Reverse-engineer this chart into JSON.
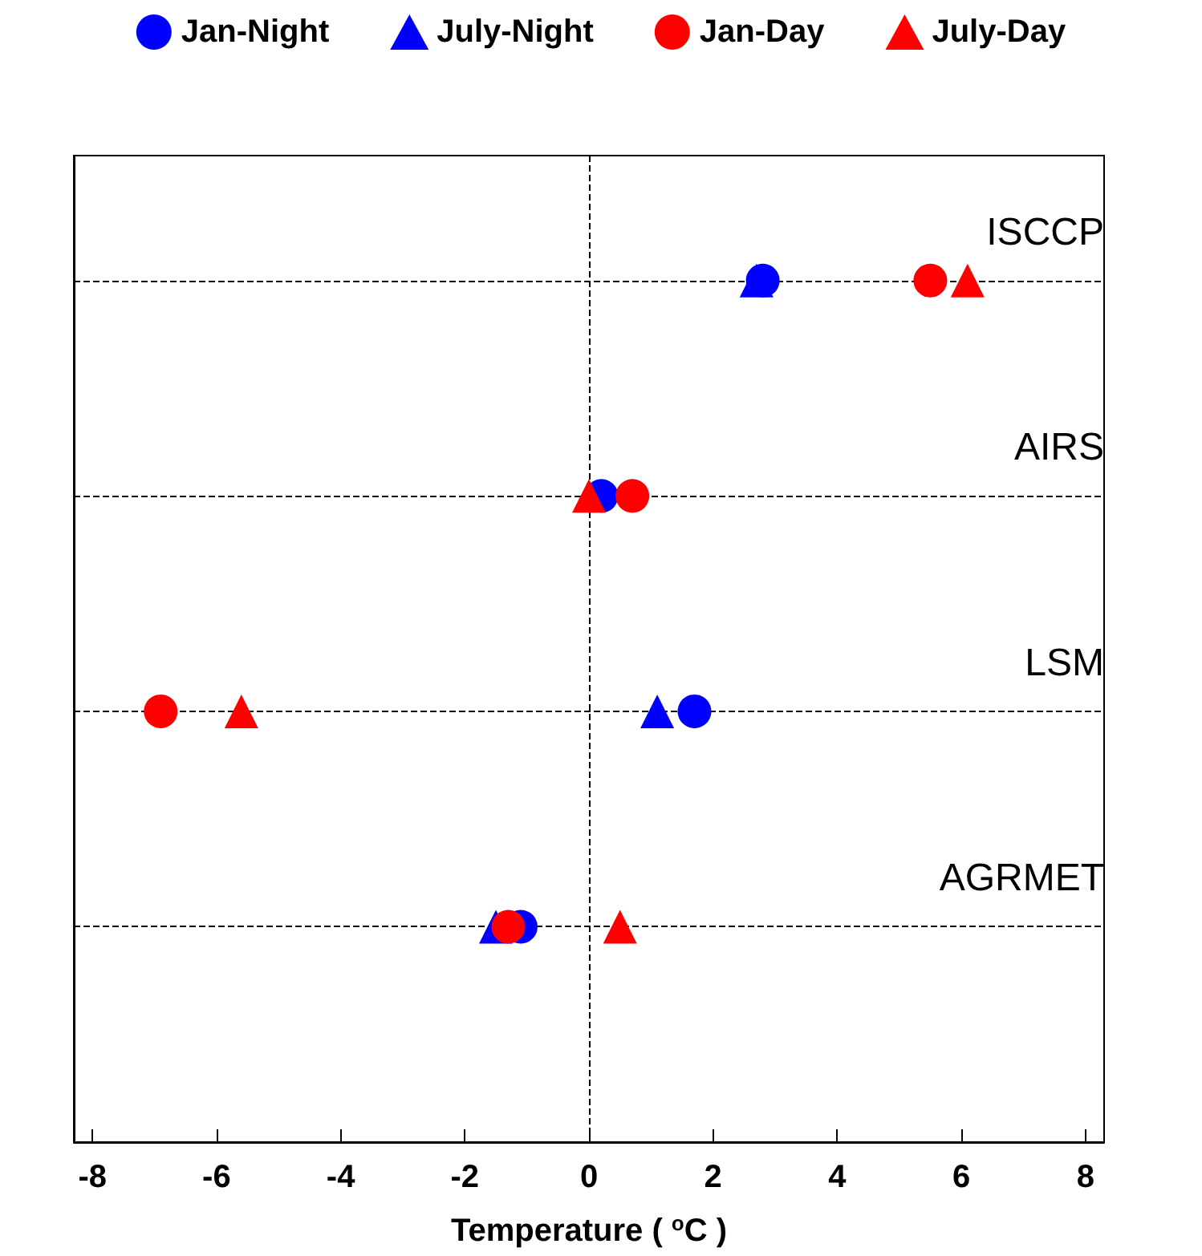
{
  "chart_data": {
    "type": "scatter",
    "orientation": "horizontal",
    "xlabel": "Temperature ( $^{o}$C )",
    "categories": [
      "ISCCP",
      "AIRS",
      "LSM",
      "AGRMET"
    ],
    "xlim": [
      -8.3,
      8.3
    ],
    "xticks": [
      -8,
      -6,
      -4,
      -2,
      0,
      2,
      4,
      6,
      8
    ],
    "grid": "y",
    "legend": "top",
    "ref_lines": [
      {
        "axis": "x",
        "value": 0,
        "line_style": "dashed",
        "color": "#000000"
      }
    ],
    "series": [
      {
        "name": "Jan-Night",
        "color": "#0000ff",
        "marker": "circle",
        "values": [
          2.8,
          0.2,
          1.7,
          -1.1
        ]
      },
      {
        "name": "July-Night",
        "color": "#0000ff",
        "marker": "triangle",
        "values": [
          2.7,
          null,
          1.1,
          -1.5
        ]
      },
      {
        "name": "Jan-Day",
        "color": "#ff0000",
        "marker": "circle",
        "values": [
          5.5,
          0.7,
          -6.9,
          -1.3
        ]
      },
      {
        "name": "July-Day",
        "color": "#ff0000",
        "marker": "triangle",
        "values": [
          6.1,
          0.0,
          -5.6,
          0.5
        ]
      }
    ]
  }
}
